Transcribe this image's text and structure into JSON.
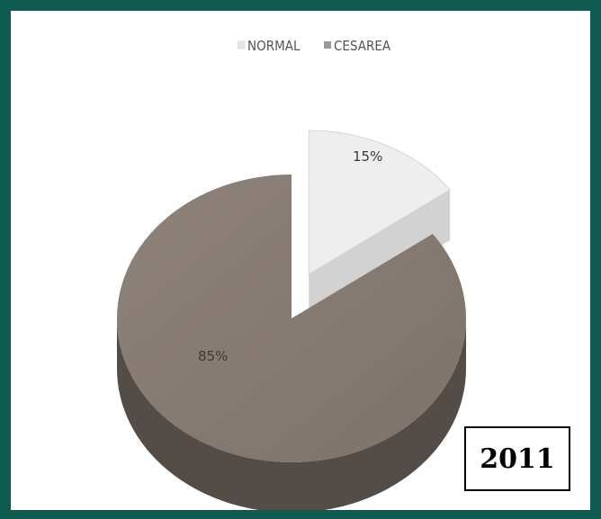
{
  "chart_data": {
    "type": "pie",
    "categories": [
      "NORMAL",
      "CESAREA"
    ],
    "values": [
      15,
      85
    ],
    "data_labels": [
      "15%",
      "85%"
    ],
    "title": "",
    "legend": "top",
    "colors": [
      "#eeeeee",
      "#8e8279"
    ],
    "exploded": "NORMAL"
  },
  "year_label": "2011"
}
